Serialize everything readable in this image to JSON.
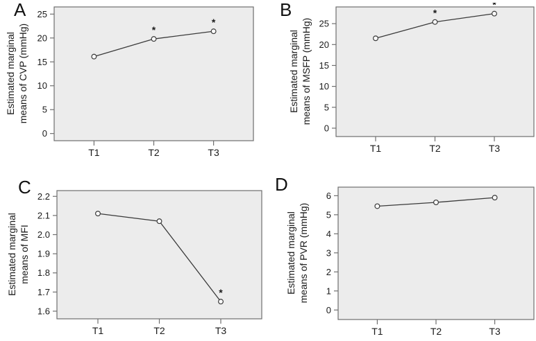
{
  "figure": {
    "plot_bg": "#ececec",
    "border_color": "#6f6f6f",
    "line_color": "#3a3a3a",
    "marker_fill": "#fbfbfb",
    "text_color": "#1a1a1a"
  },
  "chart_data": [
    {
      "panel_label": "A",
      "type": "line",
      "title": "",
      "xlabel": "",
      "ylabel": "Estimated marginal means of CVP (mmHg)",
      "ylabel_lines": [
        "Estimated marginal",
        "means of CVP (mmHg)"
      ],
      "categories": [
        "T1",
        "T2",
        "T3"
      ],
      "values": [
        16.1,
        19.8,
        21.4
      ],
      "significance": [
        "",
        "*",
        "*"
      ],
      "ytick_values": [
        0,
        5,
        10,
        15,
        20,
        25
      ],
      "ytick_labels": [
        "0",
        "5",
        "10",
        "15",
        "20",
        "25"
      ],
      "ylim": [
        -1.5,
        26.5
      ],
      "grid": false,
      "legend": "none"
    },
    {
      "panel_label": "B",
      "type": "line",
      "title": "",
      "xlabel": "",
      "ylabel": "Estimated marginal means of MSFP (mmHg)",
      "ylabel_lines": [
        "Estimated marginal",
        "means of MSFP (mmHg)"
      ],
      "categories": [
        "T1",
        "T2",
        "T3"
      ],
      "values": [
        21.5,
        25.4,
        27.4
      ],
      "significance": [
        "",
        "*",
        "*"
      ],
      "ytick_values": [
        0,
        5,
        10,
        15,
        20,
        25
      ],
      "ytick_labels": [
        "0",
        "5",
        "10",
        "15",
        "20",
        "25"
      ],
      "ylim": [
        -2,
        29
      ],
      "grid": false,
      "legend": "none"
    },
    {
      "panel_label": "C",
      "type": "line",
      "title": "",
      "xlabel": "",
      "ylabel": "Estimated marginal means of MFI",
      "ylabel_lines": [
        "Estimated marginal",
        "means of MFI"
      ],
      "categories": [
        "T1",
        "T2",
        "T3"
      ],
      "values": [
        2.11,
        2.07,
        1.65
      ],
      "significance": [
        "",
        "",
        "*"
      ],
      "ytick_values": [
        1.6,
        1.7,
        1.8,
        1.9,
        2.0,
        2.1,
        2.2
      ],
      "ytick_labels": [
        "1.6",
        "1.7",
        "1.8",
        "1.9",
        "2.0",
        "2.1",
        "2.2"
      ],
      "ylim": [
        1.56,
        2.23
      ],
      "grid": false,
      "legend": "none"
    },
    {
      "panel_label": "D",
      "type": "line",
      "title": "",
      "xlabel": "",
      "ylabel": "Estimated marginal means of PVR (mmHg)",
      "ylabel_lines": [
        "Estimated marginal",
        "means of PVR (mmHg)"
      ],
      "categories": [
        "T1",
        "T2",
        "T3"
      ],
      "values": [
        5.45,
        5.65,
        5.9
      ],
      "significance": [
        "",
        "",
        ""
      ],
      "ytick_values": [
        0,
        1,
        2,
        3,
        4,
        5,
        6
      ],
      "ytick_labels": [
        "0",
        "1",
        "2",
        "3",
        "4",
        "5",
        "6"
      ],
      "ylim": [
        -0.5,
        6.45
      ],
      "grid": false,
      "legend": "none"
    }
  ]
}
